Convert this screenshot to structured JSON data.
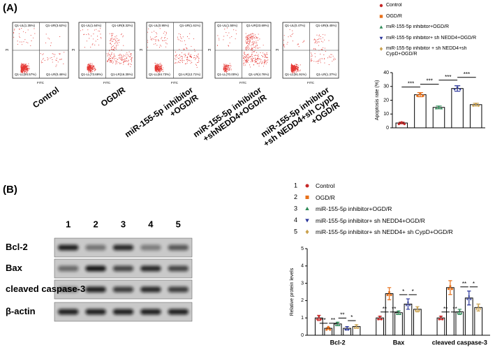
{
  "panel_a": {
    "label": "(A)",
    "x_axis": "FITC",
    "y_axis": "PI",
    "plots": [
      {
        "ul": "Q1-UL(1.35%)",
        "ur": "Q1-UR(3.62%)",
        "ll": "Q1-LL(94.57%)",
        "lr": "Q1-LR(0.46%)",
        "caption": [
          "Control"
        ]
      },
      {
        "ul": "Q1-UL(1.64%)",
        "ur": "Q1-UR(8.32%)",
        "ll": "Q1-LL(73.69%)",
        "lr": "Q1-LR(16.35%)",
        "caption": [
          "OGD/R"
        ]
      },
      {
        "ul": "Q1-UL(0.95%)",
        "ur": "Q1-UR(1.61%)",
        "ll": "Q1-LL(84.73%)",
        "lr": "Q1-LR(12.71%)",
        "caption": [
          "miR-155-5p inhibitor",
          "+OGD/R"
        ]
      },
      {
        "ul": "Q1-UL(1.55%)",
        "ur": "Q1-UR(23.69%)",
        "ll": "Q1-LL(70.00%)",
        "lr": "Q1-LR(4.76%)",
        "caption": [
          "miR-155-5p inhibitor",
          "+shNEDD4+OGD/R"
        ]
      },
      {
        "ul": "Q1-UL(0.47%)",
        "ur": "Q1-UR(6.45%)",
        "ll": "Q1-LL(91.91%)",
        "lr": "Q1-LR(1.37%)",
        "caption": [
          "miR-155-5p inhibitor",
          "+sh NEDD4+sh CypD",
          "+OGD/R"
        ]
      }
    ]
  },
  "panel_b": {
    "label": "(B)",
    "lanes": [
      "1",
      "2",
      "3",
      "4",
      "5"
    ],
    "rows": [
      "Bcl-2",
      "Bax",
      "cleaved caspase-3",
      "β-actin"
    ]
  },
  "chart_data": [
    {
      "type": "bar",
      "ylabel": "Apoptosis rate (%)",
      "ylim": [
        0,
        40
      ],
      "yticks": [
        0,
        10,
        20,
        30,
        40
      ],
      "annotations": [
        "***",
        "***",
        "***",
        "***"
      ],
      "series": [
        {
          "name": "Control",
          "color": "#c62828",
          "marker": "circle",
          "values": [
            3.5
          ],
          "errors": [
            0.6
          ]
        },
        {
          "name": "OGD/R",
          "color": "#e8701a",
          "marker": "square",
          "values": [
            24
          ],
          "errors": [
            1.5
          ]
        },
        {
          "name": "miR-155-5p inhibitor+OGD/R",
          "color": "#2e8b57",
          "marker": "triangle",
          "values": [
            14.8
          ],
          "errors": [
            1.0
          ]
        },
        {
          "name": "miR-155-5p inhibitor+ sh NEDD4+OGD/R",
          "color": "#28349a",
          "marker": "triangle-down",
          "values": [
            28.5
          ],
          "errors": [
            2.0
          ]
        },
        {
          "name": "miR-155-5p inhibitor + sh NEDD4+sh CypD+OGD/R",
          "color": "#c9a04c",
          "marker": "diamond",
          "values": [
            16.8
          ],
          "errors": [
            1.0
          ]
        }
      ]
    },
    {
      "type": "grouped-bar",
      "ylabel": "Relative protein levels",
      "ylim": [
        0,
        5
      ],
      "yticks": [
        0,
        1,
        2,
        3,
        4,
        5
      ],
      "categories": [
        "Bcl-2",
        "Bax",
        "cleaved caspase-3"
      ],
      "annotations": [
        [
          "**",
          "**",
          "**",
          "*"
        ],
        [
          "**",
          "**",
          "*",
          "*"
        ],
        [
          "**",
          "**",
          "**",
          "*"
        ]
      ],
      "series": [
        {
          "number": "1",
          "name": "Control",
          "color": "#c62828",
          "marker": "circle",
          "values": [
            1.0,
            1.0,
            1.0
          ],
          "errors": [
            0.15,
            0.1,
            0.1
          ]
        },
        {
          "number": "2",
          "name": "OGD/R",
          "color": "#e8701a",
          "marker": "square",
          "values": [
            0.4,
            2.4,
            2.75
          ],
          "errors": [
            0.05,
            0.35,
            0.4
          ]
        },
        {
          "number": "3",
          "name": "miR-155-5p inhibitor+OGD/R",
          "color": "#2e8b57",
          "marker": "triangle",
          "values": [
            0.65,
            1.3,
            1.35
          ],
          "errors": [
            0.1,
            0.1,
            0.15
          ]
        },
        {
          "number": "4",
          "name": "miR-155-5p inhibitor+ sh NEDD4+OGD/R",
          "color": "#28349a",
          "marker": "triangle-down",
          "values": [
            0.4,
            1.8,
            2.15
          ],
          "errors": [
            0.1,
            0.3,
            0.4
          ]
        },
        {
          "number": "5",
          "name": "miR-155-5p inhibitor+ sh NEDD4+ sh CypD+OGD/R",
          "color": "#c9a04c",
          "marker": "diamond",
          "values": [
            0.5,
            1.5,
            1.6
          ],
          "errors": [
            0.1,
            0.15,
            0.2
          ]
        }
      ]
    }
  ]
}
